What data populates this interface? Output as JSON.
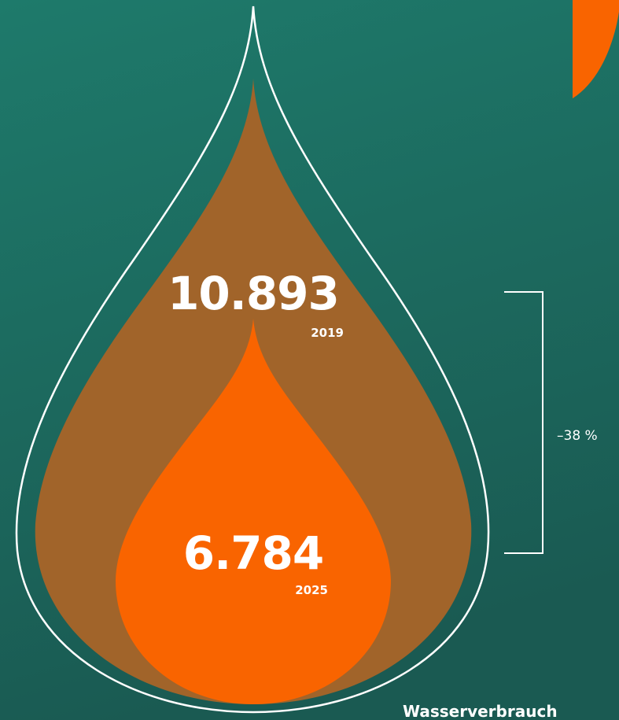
{
  "chart_data": {
    "type": "area",
    "categories": [
      "2019",
      "2025"
    ],
    "values": [
      10893,
      6784
    ],
    "value_labels": [
      "10.893",
      "6.784"
    ],
    "change_label": "–38 %",
    "caption": "Wasserverbrauch"
  },
  "colors": {
    "background_top": "#1e7a6b",
    "background_bottom": "#1a5a52",
    "drop_2019": "#a1642a",
    "drop_2025": "#f96400",
    "accent": "#f96400",
    "outline": "#ffffff"
  }
}
